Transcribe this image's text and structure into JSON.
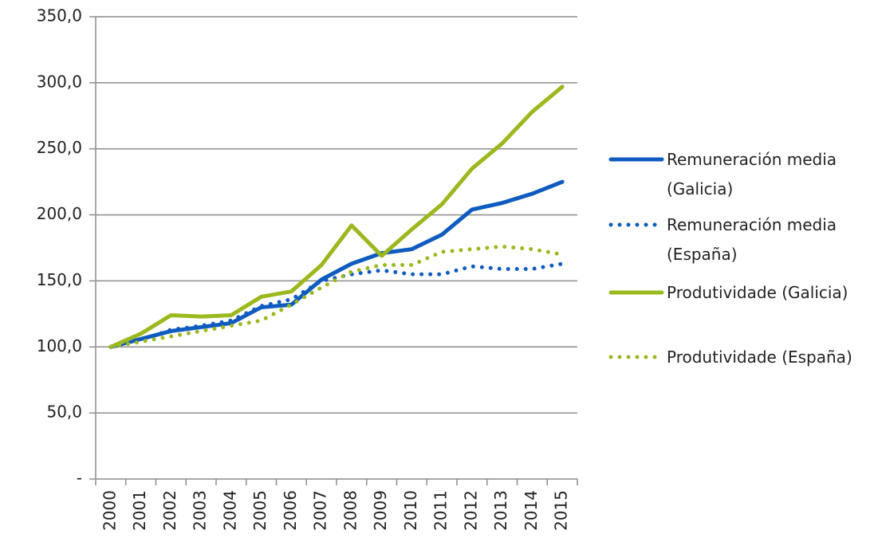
{
  "chart_data": {
    "type": "line",
    "categories": [
      "2000",
      "2001",
      "2002",
      "2003",
      "2004",
      "2005",
      "2006",
      "2007",
      "2008",
      "2009",
      "2010",
      "2011",
      "2012",
      "2013",
      "2014",
      "2015"
    ],
    "series": [
      {
        "name": "Remuneración media (Galicia)",
        "color": "#0f5bbf",
        "style": "solid",
        "values": [
          100,
          106,
          112,
          115,
          118,
          130,
          132,
          151,
          163,
          171,
          174,
          185,
          204,
          209,
          216,
          225
        ]
      },
      {
        "name": "Remuneración media (España)",
        "color": "#0f5bbf",
        "style": "dotted",
        "values": [
          100,
          105,
          113,
          116,
          120,
          131,
          136,
          150,
          155,
          158,
          155,
          155,
          161,
          159,
          159,
          163
        ]
      },
      {
        "name": "Produtividade (Galicia)",
        "color": "#9bb81f",
        "style": "solid",
        "values": [
          100,
          110,
          124,
          123,
          124,
          138,
          142,
          162,
          192,
          169,
          189,
          208,
          235,
          254,
          278,
          297
        ]
      },
      {
        "name": "Produtividade (España)",
        "color": "#9bb81f",
        "style": "dotted",
        "values": [
          100,
          104,
          108,
          112,
          116,
          120,
          132,
          145,
          157,
          162,
          162,
          172,
          174,
          176,
          174,
          170
        ]
      }
    ],
    "ylim": [
      0,
      350
    ],
    "yticks": [
      {
        "value": 0,
        "label": "-"
      },
      {
        "value": 50,
        "label": "50,0"
      },
      {
        "value": 100,
        "label": "100,0"
      },
      {
        "value": 150,
        "label": "150,0"
      },
      {
        "value": 200,
        "label": "200,0"
      },
      {
        "value": 250,
        "label": "250,0"
      },
      {
        "value": 300,
        "label": "300,0"
      },
      {
        "value": 350,
        "label": "350,0"
      }
    ],
    "grid": true,
    "legend": "right"
  }
}
